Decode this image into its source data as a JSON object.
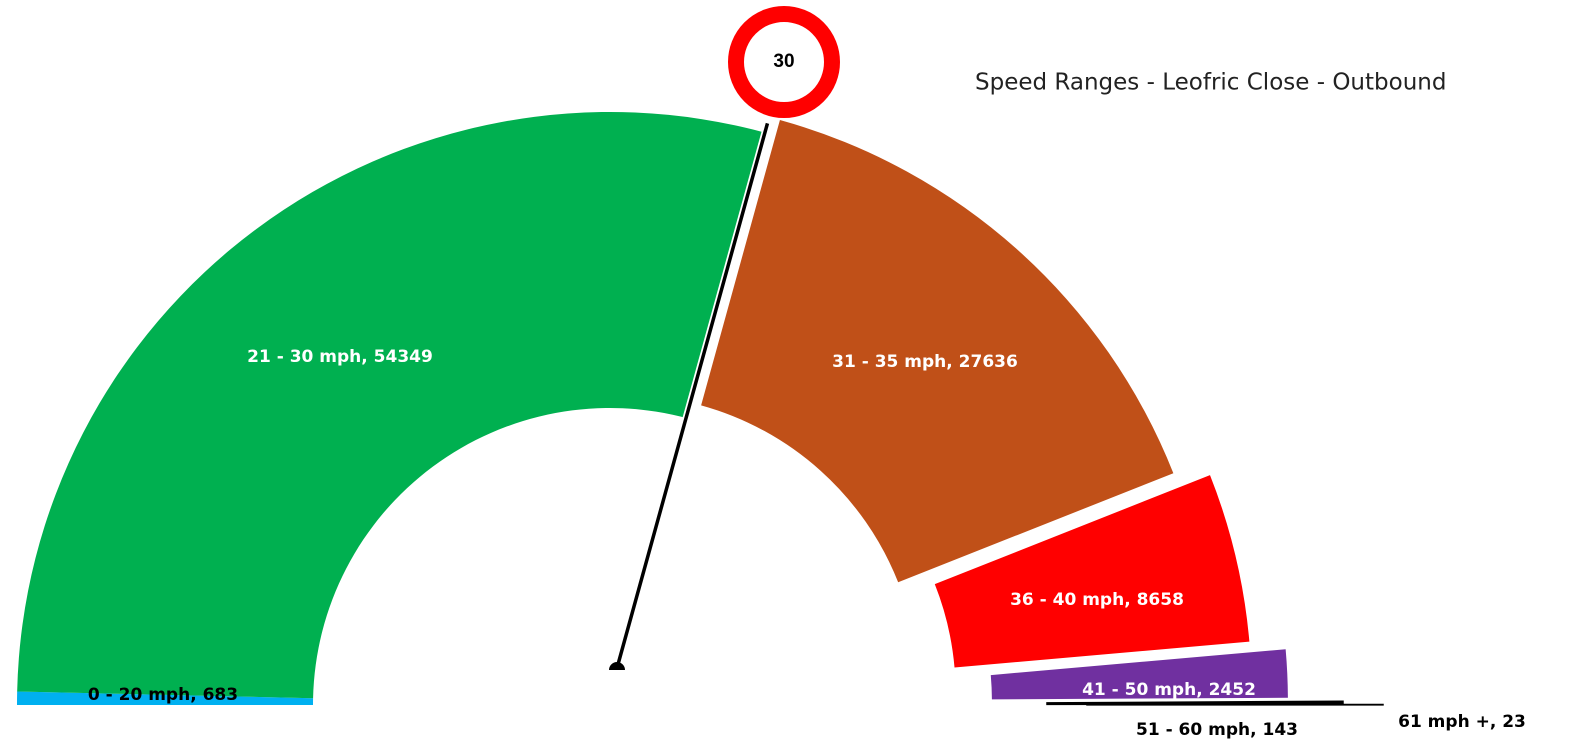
{
  "chart_data": {
    "type": "half-doughnut",
    "title": "Speed Ranges - Leofric Close - Outbound",
    "speed_limit": 30,
    "categories": [
      "0 - 20 mph",
      "21 - 30 mph",
      "31 - 35 mph",
      "36 - 40 mph",
      "41 - 50 mph",
      "51 - 60 mph",
      "61 mph +"
    ],
    "values": [
      683,
      54349,
      27636,
      8658,
      2452,
      143,
      23
    ],
    "value_labels": [
      "0 - 20 mph, 683",
      "21 - 30 mph, 54349",
      "31 - 35 mph, 27636",
      "36 - 40 mph, 8658",
      "41 - 50 mph, 2452",
      "51 - 60 mph, 143",
      "61 mph +, 23"
    ],
    "colors": [
      "#00b0f0",
      "#00b050",
      "#c05018",
      "#ff0000",
      "#7030a0",
      "#000000",
      "#000000"
    ]
  }
}
